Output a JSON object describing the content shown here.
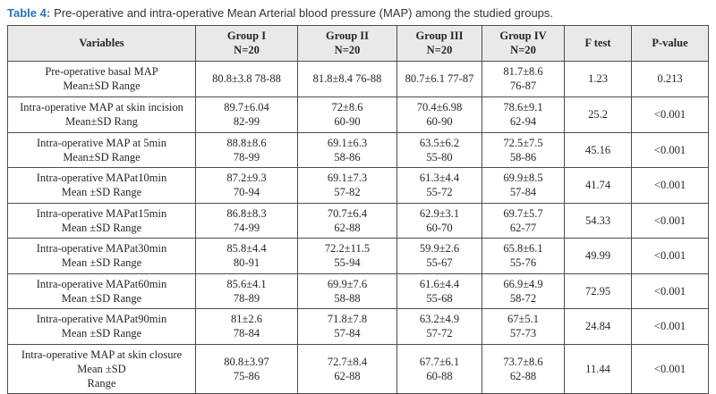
{
  "title": {
    "label": "Table 4:",
    "text": "Pre-operative and intra-operative Mean Arterial blood pressure (MAP) among the studied groups."
  },
  "colors": {
    "title_accent": "#2673b8",
    "header_bg": "#e9e9e9",
    "border": "#4d4d4d",
    "text": "#262626"
  },
  "table": {
    "headers": [
      [
        "Variables"
      ],
      [
        "Group I",
        "N=20"
      ],
      [
        "Group II",
        "N=20"
      ],
      [
        "Group III",
        "N=20"
      ],
      [
        "Group IV",
        "N=20"
      ],
      [
        "F test"
      ],
      [
        "P-value"
      ]
    ],
    "rows": [
      {
        "cells": [
          [
            "Pre-operative basal MAP",
            "Mean±SD Range"
          ],
          [
            "80.8±3.8 78-88"
          ],
          [
            "81.8±8.4 76-88"
          ],
          [
            "80.7±6.1 77-87"
          ],
          [
            "81.7±8.6",
            "76-87"
          ],
          [
            "1.23"
          ],
          [
            "0.213"
          ]
        ]
      },
      {
        "cells": [
          [
            "Intra-operative MAP at skin incision",
            "Mean±SD Rang"
          ],
          [
            "89.7±6.04",
            "82-99"
          ],
          [
            "72±8.6",
            "60-90"
          ],
          [
            "70.4±6.98",
            "60-90"
          ],
          [
            "78.6±9.1",
            "62-94"
          ],
          [
            "25.2"
          ],
          [
            "<0.001"
          ]
        ]
      },
      {
        "cells": [
          [
            "Intra-operative MAP at 5min",
            "Mean±SD  Range"
          ],
          [
            "88.8±8.6",
            "78-99"
          ],
          [
            "69.1±6.3",
            "58-86"
          ],
          [
            "63.5±6.2",
            "55-80"
          ],
          [
            "72.5±7.5",
            "58-86"
          ],
          [
            "45.16"
          ],
          [
            "<0.001"
          ]
        ]
      },
      {
        "cells": [
          [
            "Intra-operative MAPat10min",
            "Mean ±SD Range"
          ],
          [
            "87.2±9.3",
            "70-94"
          ],
          [
            "69.1±7.3",
            "57-82"
          ],
          [
            "61.3±4.4",
            "55-72"
          ],
          [
            "69.9±8.5",
            "57-84"
          ],
          [
            "41.74"
          ],
          [
            "<0.001"
          ]
        ]
      },
      {
        "cells": [
          [
            "Intra-operative MAPat15min",
            "Mean ±SD Range"
          ],
          [
            "86.8±8.3",
            "74-99"
          ],
          [
            "70.7±6.4",
            "62-88"
          ],
          [
            "62.9±3.1",
            "60-70"
          ],
          [
            "69.7±5.7",
            "62-77"
          ],
          [
            "54.33"
          ],
          [
            "<0.001"
          ]
        ]
      },
      {
        "cells": [
          [
            "Intra-operative MAPat30min",
            "Mean ±SD Range"
          ],
          [
            "85.8±4.4",
            "80-91"
          ],
          [
            "72.2±11.5",
            "55-94"
          ],
          [
            "59.9±2.6",
            "55-67"
          ],
          [
            "65.8±6.1",
            "55-76"
          ],
          [
            "49.99"
          ],
          [
            "<0.001"
          ]
        ]
      },
      {
        "cells": [
          [
            "Intra-operative MAPat60min",
            "Mean ±SD Range"
          ],
          [
            "85.6±4.1",
            "78-89"
          ],
          [
            "69.9±7.6",
            "58-88"
          ],
          [
            "61.6±4.4",
            "55-68"
          ],
          [
            "66.9±4.9",
            "58-72"
          ],
          [
            "72.95"
          ],
          [
            "<0.001"
          ]
        ]
      },
      {
        "cells": [
          [
            "Intra-operative MAPat90min",
            "Mean ±SD Range"
          ],
          [
            "81±2.6",
            "78-84"
          ],
          [
            "71.8±7.8",
            "57-84"
          ],
          [
            "63.2±4.9",
            "57-72"
          ],
          [
            "67±5.1",
            "57-73"
          ],
          [
            "24.84"
          ],
          [
            "<0.001"
          ]
        ]
      },
      {
        "cells": [
          [
            "Intra-operative MAP at skin closure",
            "Mean ±SD",
            "Range"
          ],
          [
            "80.8±3.97",
            "75-86"
          ],
          [
            "72.7±8.4",
            "62-88"
          ],
          [
            "67.7±6.1",
            "60-88"
          ],
          [
            "73.7±8.6",
            "62-88"
          ],
          [
            "11.44"
          ],
          [
            "<0.001"
          ]
        ]
      }
    ]
  }
}
